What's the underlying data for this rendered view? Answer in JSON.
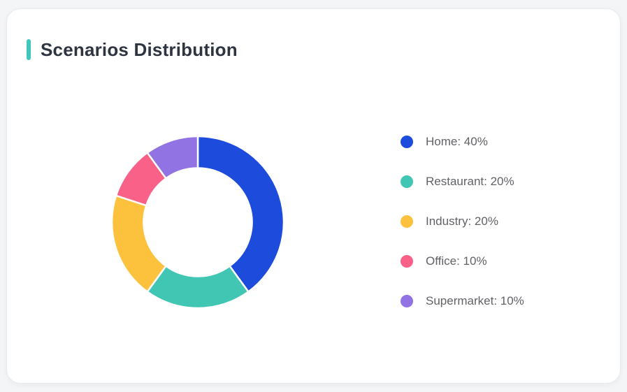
{
  "page": {
    "background": "#f4f5f7"
  },
  "card": {
    "title": "Scenarios Distribution",
    "background": "#ffffff",
    "border_color": "#e8eaee",
    "accent_bar_color": "#3fc6bd",
    "title_color": "#2e3440"
  },
  "legend": {
    "text_color": "#606266"
  },
  "chart_data": {
    "type": "pie",
    "donut": true,
    "title": "Scenarios Distribution",
    "categories": [
      "Home",
      "Restaurant",
      "Industry",
      "Office",
      "Supermarket"
    ],
    "values": [
      40,
      20,
      20,
      10,
      10
    ],
    "unit": "%",
    "colors": [
      "#1d4cdd",
      "#41c6b4",
      "#fdc23d",
      "#fa6189",
      "#9173e3"
    ],
    "legend_labels": [
      "Home: 40%",
      "Restaurant: 20%",
      "Industry: 20%",
      "Office: 10%",
      "Supermarket: 10%"
    ],
    "legend_position": "right",
    "start_angle_deg": 0,
    "clockwise": true,
    "inner_radius_ratio": 0.63,
    "slice_gap_color": "#ffffff"
  }
}
